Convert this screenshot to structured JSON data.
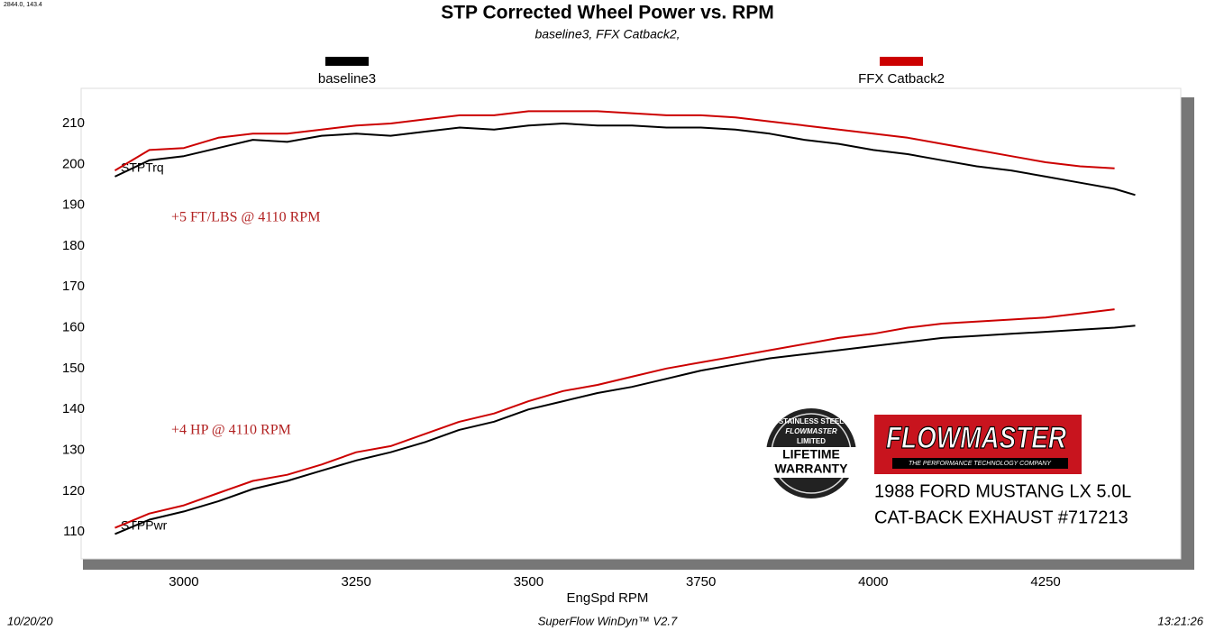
{
  "chart_data": {
    "type": "line",
    "cursor_readout": "2844.0, 143.4",
    "title": "STP Corrected Wheel Power vs. RPM",
    "subtitle": "baseline3, FFX Catback2,",
    "xlabel": "EngSpd  RPM",
    "xlim": [
      2851,
      4446
    ],
    "xticks": [
      3000,
      3250,
      3500,
      3750,
      4000,
      4250
    ],
    "ylim": [
      103.4,
      218.6
    ],
    "yticks": [
      110,
      120,
      130,
      140,
      150,
      160,
      170,
      180,
      190,
      200,
      210
    ],
    "curve_labels": {
      "torque": "STPTrq",
      "power": "STPPwr"
    },
    "x": [
      2900,
      2950,
      3000,
      3050,
      3100,
      3150,
      3200,
      3250,
      3300,
      3350,
      3400,
      3450,
      3500,
      3550,
      3600,
      3650,
      3700,
      3750,
      3800,
      3850,
      3900,
      3950,
      4000,
      4050,
      4100,
      4150,
      4200,
      4250,
      4300,
      4350,
      4380
    ],
    "series": [
      {
        "name": "baseline3",
        "color": "#000000",
        "torque": [
          197,
          201,
          202,
          204,
          206,
          205.5,
          207,
          207.5,
          207,
          208,
          209,
          208.5,
          209.5,
          210,
          209.5,
          209.5,
          209,
          209,
          208.5,
          207.5,
          206,
          205,
          203.5,
          202.5,
          201,
          199.5,
          198.5,
          197,
          195.5,
          194,
          192.5
        ],
        "power": [
          109.5,
          113,
          115,
          117.5,
          120.5,
          122.5,
          125,
          127.5,
          129.5,
          132,
          135,
          137,
          140,
          142,
          144,
          145.5,
          147.5,
          149.5,
          151,
          152.5,
          153.5,
          154.5,
          155.5,
          156.5,
          157.5,
          158,
          158.5,
          159,
          159.5,
          160,
          160.5
        ]
      },
      {
        "name": "FFX Catback2",
        "color": "#cc0000",
        "torque": [
          198.5,
          203.5,
          204,
          206.5,
          207.5,
          207.5,
          208.5,
          209.5,
          210,
          211,
          212,
          212,
          213,
          213,
          213,
          212.5,
          212,
          212,
          211.5,
          210.5,
          209.5,
          208.5,
          207.5,
          206.5,
          205,
          203.5,
          202,
          200.5,
          199.5,
          199,
          null
        ],
        "power": [
          111,
          114.5,
          116.5,
          119.5,
          122.5,
          124,
          126.5,
          129.5,
          131,
          134,
          137,
          139,
          142,
          144.5,
          146,
          148,
          150,
          151.5,
          153,
          154.5,
          156,
          157.5,
          158.5,
          160,
          161,
          161.5,
          162,
          162.5,
          163.5,
          164.5,
          null
        ]
      }
    ],
    "annotations": [
      "+5 FT/LBS @ 4110 RPM",
      "+4 HP @ 4110 RPM"
    ],
    "annotation_color": "#b22222",
    "badge": {
      "top": "STAINLESS STEEL",
      "brand": "FLOWMASTER",
      "mid": "LIMITED",
      "line1": "LIFETIME",
      "line2": "WARRANTY"
    },
    "logo": {
      "brand": "FLOWMASTER",
      "tagline": "THE PERFORMANCE TECHNOLOGY COMPANY"
    },
    "vehicle": [
      "1988 FORD MUSTANG LX 5.0L",
      "CAT-BACK EXHAUST #717213"
    ],
    "footer": {
      "date": "10/20/20",
      "software": "SuperFlow WinDyn™ V2.7",
      "time": "13:21:26"
    }
  }
}
